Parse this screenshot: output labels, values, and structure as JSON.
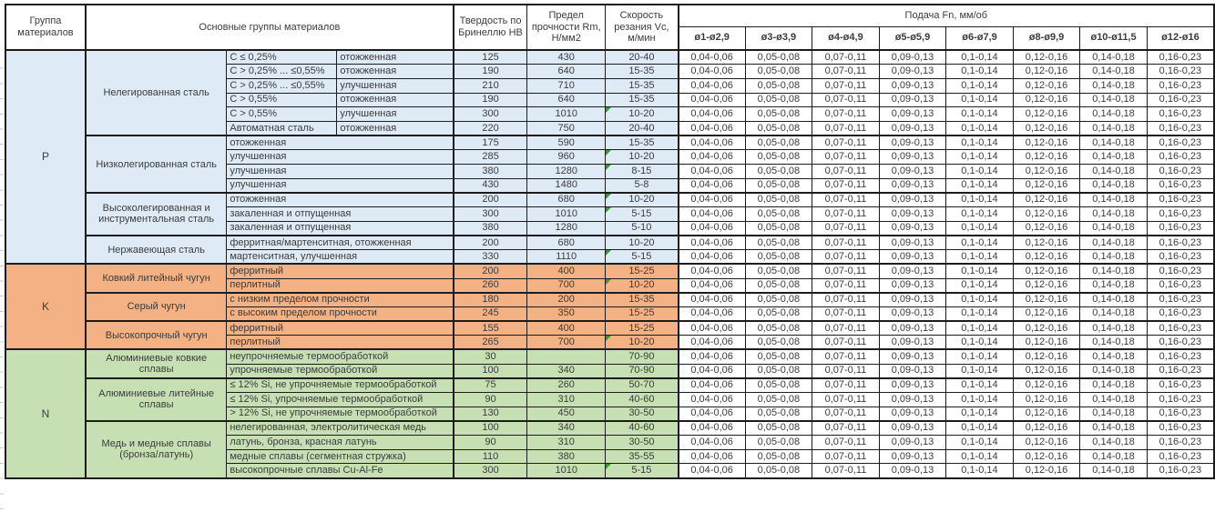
{
  "header": {
    "group_col": "Группа материалов",
    "main_col": "Основные группы материалов",
    "hb_col": "Твердость по Бринеллю HB",
    "rm_col": "Предел прочности Rm, Н/мм2",
    "vc_col": "Скорость резания Vc, м/мин"
  },
  "feed": {
    "title": "Подача Fn, мм/об",
    "columns": [
      "ø1-ø2,9",
      "ø3-ø3,9",
      "ø4-ø4,9",
      "ø5-ø5,9",
      "ø6-ø7,9",
      "ø8-ø9,9",
      "ø10-ø11,5",
      "ø12-ø16"
    ],
    "values": [
      "0,04-0,06",
      "0,05-0,08",
      "0,07-0,11",
      "0,09-0,13",
      "0,1-0,14",
      "0,12-0,16",
      "0,14-0,18",
      "0,16-0,23"
    ]
  },
  "colors": {
    "group_p_fill": "#DEEAF6",
    "group_k_fill": "#F4B183",
    "group_n_fill": "#C6E0B4",
    "comment_marker": "#2E9E2E"
  },
  "groups": [
    {
      "code": "P",
      "color": "#DEEAF6",
      "subgroups": [
        {
          "name": "Нелегированная сталь",
          "rows": [
            {
              "spec1": "C ≤ 0,25%",
              "spec2": "отожженная",
              "hb": "125",
              "rm": "430",
              "vc": "20-40",
              "marker": false
            },
            {
              "spec1": "C > 0,25% ... ≤0,55%",
              "spec2": "отожженная",
              "hb": "190",
              "rm": "640",
              "vc": "15-35",
              "marker": false
            },
            {
              "spec1": "C > 0,25% ... ≤0,55%",
              "spec2": "улучшенная",
              "hb": "210",
              "rm": "710",
              "vc": "15-35",
              "marker": false
            },
            {
              "spec1": "C > 0,55%",
              "spec2": "отожженная",
              "hb": "190",
              "rm": "640",
              "vc": "15-35",
              "marker": false
            },
            {
              "spec1": "C > 0,55%",
              "spec2": "улучшенная",
              "hb": "300",
              "rm": "1010",
              "vc": "10-20",
              "marker": true
            },
            {
              "spec1": "Автоматная сталь",
              "spec2": "отожженная",
              "hb": "220",
              "rm": "750",
              "vc": "20-40",
              "marker": false
            }
          ]
        },
        {
          "name": "Низколегированная сталь",
          "rows": [
            {
              "spec": "отожженная",
              "hb": "175",
              "rm": "590",
              "vc": "15-35",
              "marker": false
            },
            {
              "spec": "улучшенная",
              "hb": "285",
              "rm": "960",
              "vc": "10-20",
              "marker": true
            },
            {
              "spec": "улучшенная",
              "hb": "380",
              "rm": "1280",
              "vc": "8-15",
              "marker": true
            },
            {
              "spec": "улучшенная",
              "hb": "430",
              "rm": "1480",
              "vc": "5-8",
              "marker": false
            }
          ]
        },
        {
          "name": "Высоколегированная и инструментальная сталь",
          "rows": [
            {
              "spec": "отожженная",
              "hb": "200",
              "rm": "680",
              "vc": "10-20",
              "marker": true
            },
            {
              "spec": "закаленная и отпущенная",
              "hb": "300",
              "rm": "1010",
              "vc": "5-15",
              "marker": true
            },
            {
              "spec": "закаленная и отпущенная",
              "hb": "380",
              "rm": "1280",
              "vc": "5-10",
              "marker": false
            }
          ]
        },
        {
          "name": "Нержавеющая сталь",
          "rows": [
            {
              "spec": "ферритная/мартенситная, отожженная",
              "hb": "200",
              "rm": "680",
              "vc": "10-20",
              "marker": false
            },
            {
              "spec": "мартенситная, улучшенная",
              "hb": "330",
              "rm": "1110",
              "vc": "5-15",
              "marker": true
            }
          ]
        }
      ]
    },
    {
      "code": "K",
      "color": "#F4B183",
      "subgroups": [
        {
          "name": "Ковкий литейный чугун",
          "rows": [
            {
              "spec": "ферритный",
              "hb": "200",
              "rm": "400",
              "vc": "15-25",
              "marker": false
            },
            {
              "spec": "перлитный",
              "hb": "260",
              "rm": "700",
              "vc": "10-20",
              "marker": true
            }
          ]
        },
        {
          "name": "Серый чугун",
          "rows": [
            {
              "spec": "с низким пределом прочности",
              "hb": "180",
              "rm": "200",
              "vc": "15-35",
              "marker": false
            },
            {
              "spec": "с высоким пределом прочности",
              "hb": "245",
              "rm": "350",
              "vc": "15-25",
              "marker": false
            }
          ]
        },
        {
          "name": "Высокопрочный чугун",
          "rows": [
            {
              "spec": "ферритный",
              "hb": "155",
              "rm": "400",
              "vc": "15-25",
              "marker": false
            },
            {
              "spec": "перлитный",
              "hb": "265",
              "rm": "700",
              "vc": "10-20",
              "marker": true
            }
          ]
        }
      ]
    },
    {
      "code": "N",
      "color": "#C6E0B4",
      "subgroups": [
        {
          "name": "Алюминиевые ковкие сплавы",
          "rows": [
            {
              "spec": "неупрочняемые термообработкой",
              "hb": "30",
              "rm": "",
              "vc": "70-90",
              "marker": false
            },
            {
              "spec": "упрочняемые термообработкой",
              "hb": "100",
              "rm": "340",
              "vc": "70-90",
              "marker": false
            }
          ]
        },
        {
          "name": "Алюминиевые литейные сплавы",
          "rows": [
            {
              "spec": "≤ 12% Si, не упрочняемые термообработкой",
              "hb": "75",
              "rm": "260",
              "vc": "50-70",
              "marker": false
            },
            {
              "spec": "≤ 12% Si, упрочняемые термообработкой",
              "hb": "90",
              "rm": "310",
              "vc": "40-60",
              "marker": false
            },
            {
              "spec": "> 12% Si, не упрочняемые термообработкой",
              "hb": "130",
              "rm": "450",
              "vc": "30-50",
              "marker": false
            }
          ]
        },
        {
          "name": "Медь и медные сплавы (бронза/латунь)",
          "rows": [
            {
              "spec": "нелегированная, электролитическая медь",
              "hb": "100",
              "rm": "340",
              "vc": "40-60",
              "marker": false
            },
            {
              "spec": "латунь, бронза, красная латунь",
              "hb": "90",
              "rm": "310",
              "vc": "30-50",
              "marker": false
            },
            {
              "spec": "медные сплавы (сегментная стружка)",
              "hb": "110",
              "rm": "380",
              "vc": "35-55",
              "marker": false
            },
            {
              "spec": "высокопрочные сплавы Cu-Al-Fe",
              "hb": "300",
              "rm": "1010",
              "vc": "5-15",
              "marker": true
            }
          ]
        }
      ]
    }
  ]
}
